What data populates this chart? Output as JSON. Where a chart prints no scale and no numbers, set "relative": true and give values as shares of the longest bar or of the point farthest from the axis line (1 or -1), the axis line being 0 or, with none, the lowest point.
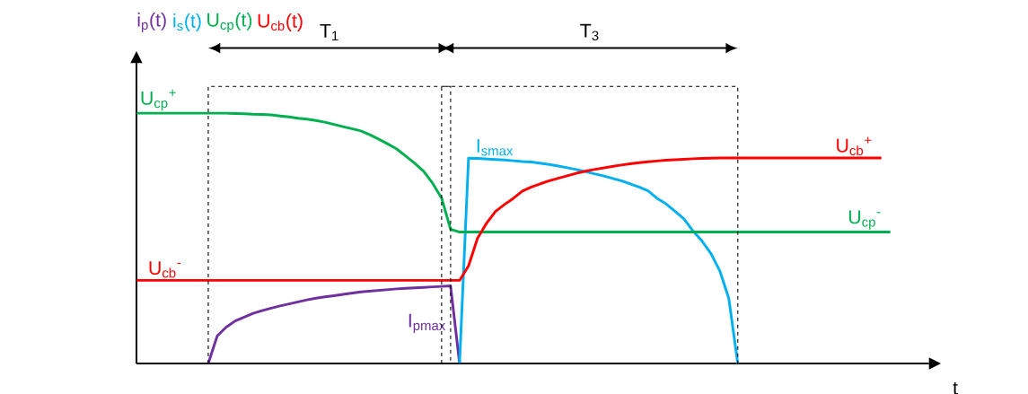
{
  "chart_data": {
    "type": "line",
    "relative": true,
    "xlabel": "t",
    "line_style": "solid",
    "categories": [
      null,
      null,
      null,
      null,
      null,
      null,
      null,
      null,
      null,
      null,
      null,
      null,
      null,
      null,
      null,
      null,
      null,
      null,
      null,
      null,
      null,
      null,
      null,
      null,
      null,
      null,
      null,
      null,
      null,
      null,
      null,
      null,
      null,
      null,
      null,
      null,
      null,
      null,
      null,
      null,
      null,
      null,
      null,
      null,
      null,
      null,
      null,
      null,
      null,
      null,
      null,
      null,
      null,
      null,
      null,
      null,
      null,
      null,
      null,
      null,
      null,
      null,
      null,
      null,
      null,
      null,
      null,
      null,
      null,
      null,
      null,
      null,
      null,
      null,
      null,
      null,
      null,
      null,
      null,
      null,
      null,
      null,
      null,
      null,
      null
    ],
    "series": [
      {
        "name": "i$_{p}$(t)",
        "color": "#7030a0",
        "values": [
          null,
          null,
          null,
          null,
          null,
          null,
          null,
          null,
          0,
          0.11,
          0.145,
          0.17,
          0.185,
          0.2,
          0.211,
          0.221,
          0.23,
          0.238,
          0.246,
          0.254,
          0.261,
          0.266,
          0.271,
          0.276,
          0.281,
          0.286,
          0.289,
          0.292,
          0.295,
          0.298,
          0.3,
          0.302,
          0.304,
          0.306,
          0.308,
          0.31,
          0,
          null,
          null,
          null,
          null,
          null,
          null,
          null,
          null,
          null,
          null,
          null,
          null,
          null,
          null,
          null,
          null,
          null,
          null,
          null,
          null,
          null,
          null,
          null,
          null,
          null,
          null,
          null,
          null,
          null,
          null,
          null,
          null,
          null,
          null,
          null,
          null,
          null,
          null,
          null,
          null,
          null,
          null,
          null,
          null,
          null,
          null,
          null,
          null
        ]
      },
      {
        "name": "i$_{s}$(t)",
        "color": "#00b0f0",
        "values": [
          null,
          null,
          null,
          null,
          null,
          null,
          null,
          null,
          null,
          null,
          null,
          null,
          null,
          null,
          null,
          null,
          null,
          null,
          null,
          null,
          null,
          null,
          null,
          null,
          null,
          null,
          null,
          null,
          null,
          null,
          null,
          null,
          null,
          null,
          null,
          null,
          0,
          0.82,
          0.819,
          0.817,
          0.815,
          0.813,
          0.81,
          0.807,
          0.805,
          0.8,
          0.795,
          0.789,
          0.782,
          0.775,
          0.767,
          0.758,
          0.75,
          0.74,
          0.73,
          0.718,
          0.705,
          0.69,
          0.66,
          0.638,
          0.608,
          0.578,
          0.53,
          0.49,
          0.44,
          0.37,
          0.26,
          0,
          null,
          null,
          null,
          null,
          null,
          null,
          null,
          null,
          null,
          null,
          null,
          null,
          null,
          null,
          null,
          null,
          null
        ]
      },
      {
        "name": "U$_{cp}$(t)",
        "color": "#00b050",
        "values": [
          1,
          1,
          1,
          1,
          1,
          1,
          1,
          1,
          1,
          1,
          1,
          0.999,
          0.998,
          0.996,
          0.995,
          0.993,
          0.989,
          0.985,
          0.98,
          0.976,
          0.971,
          0.964,
          0.955,
          0.946,
          0.938,
          0.929,
          0.914,
          0.896,
          0.877,
          0.857,
          0.829,
          0.8,
          0.768,
          0.72,
          0.661,
          0.536,
          0.525,
          0.525,
          0.525,
          0.525,
          0.525,
          0.525,
          0.525,
          0.525,
          0.525,
          0.525,
          0.525,
          0.525,
          0.525,
          0.525,
          0.525,
          0.525,
          0.525,
          0.525,
          0.525,
          0.525,
          0.525,
          0.525,
          0.525,
          0.525,
          0.525,
          0.525,
          0.525,
          0.525,
          0.525,
          0.525,
          0.525,
          0.525,
          0.525,
          0.525,
          0.525,
          0.525,
          0.525,
          0.525,
          0.525,
          0.525,
          0.525,
          0.525,
          0.525,
          0.525,
          0.525,
          0.525,
          0.525,
          0.525,
          0.525
        ]
      },
      {
        "name": "U$_{cb}$(t)",
        "color": "#ff0000",
        "values": [
          0.332,
          0.332,
          0.332,
          0.332,
          0.332,
          0.332,
          0.332,
          0.332,
          0.332,
          0.332,
          0.332,
          0.332,
          0.332,
          0.332,
          0.332,
          0.332,
          0.332,
          0.332,
          0.332,
          0.332,
          0.332,
          0.332,
          0.332,
          0.332,
          0.332,
          0.332,
          0.332,
          0.332,
          0.332,
          0.332,
          0.332,
          0.332,
          0.332,
          0.332,
          0.332,
          0.332,
          0.332,
          0.39,
          0.5,
          0.56,
          0.607,
          0.635,
          0.66,
          0.689,
          0.705,
          0.718,
          0.73,
          0.74,
          0.75,
          0.76,
          0.768,
          0.775,
          0.781,
          0.787,
          0.793,
          0.798,
          0.802,
          0.806,
          0.809,
          0.812,
          0.814,
          0.816,
          0.818,
          0.819,
          0.82,
          0.821,
          0.821,
          0.821,
          0.821,
          0.821,
          0.821,
          0.821,
          0.821,
          0.821,
          0.821,
          0.821,
          0.821,
          0.821,
          0.821,
          0.821,
          0.821,
          0.821,
          0.821,
          0.821,
          null
        ]
      }
    ],
    "annotations": [
      {
        "text": "U$_{cp}$$^{+}$",
        "y": 1
      },
      {
        "text": "U$_{cb}$$^{+}$",
        "y": 0.821
      },
      {
        "text": "U$_{cp}$$^{-}$",
        "y": 0.525
      },
      {
        "text": "U$_{cb}$$^{-}$",
        "y": 0.332
      },
      "I$_{pmax}$",
      {
        "text": "I$_{smax}$",
        "y": 0.82
      },
      "T$_{1}$",
      "T$_{3}$"
    ]
  }
}
